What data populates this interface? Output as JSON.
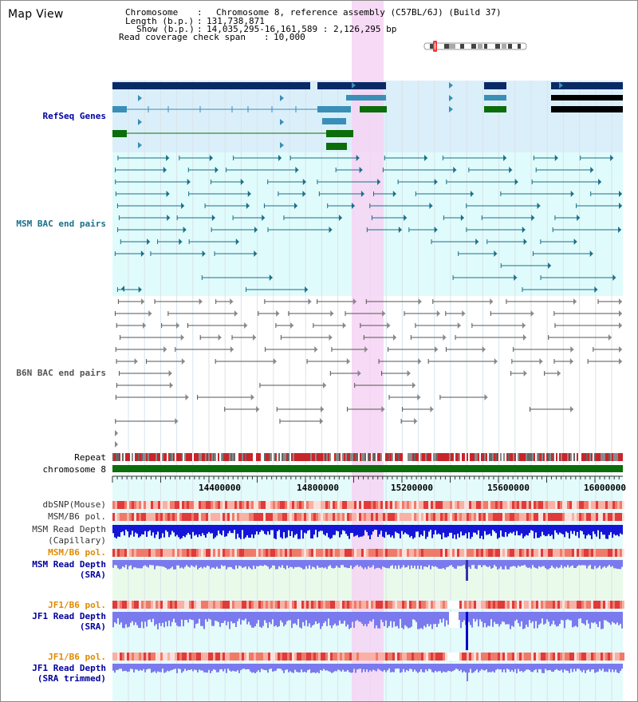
{
  "window": {
    "title": "Map View"
  },
  "info": {
    "chromosome_key": "Chromosome",
    "chromosome_val": "Chromosome 8, reference assembly (C57BL/6J) (Build 37)",
    "length_key": "Length (b.p.)",
    "length_val": "131,738,871",
    "show_key": "Show (b.p.)",
    "show_val": "14,035,295-16,161,589 : 2,126,295 bp",
    "coverage_key": "Read coverage check span",
    "coverage_val": "10,000"
  },
  "tracks": {
    "refseq": "RefSeq Genes",
    "msm_bac": "MSM BAC end pairs",
    "b6n_bac": "B6N BAC end pairs",
    "repeat": "Repeat",
    "chromosome": "chromosome 8",
    "dbsnp": "dbSNP(Mouse)",
    "msm_b6_pol_1": "MSM/B6 pol.",
    "msm_depth_cap_1": "MSM Read Depth",
    "msm_depth_cap_2": "(Capillary)",
    "msm_b6_pol_2": "MSM/B6 pol.",
    "msm_depth_sra_1": "MSM Read Depth",
    "msm_depth_sra_2": "(SRA)",
    "jf1_b6_pol_1": "JF1/B6 pol.",
    "jf1_depth_1": "JF1 Read Depth",
    "jf1_depth_2": "(SRA)",
    "jf1_b6_pol_2": "JF1/B6 pol.",
    "jf1_trim_1": "JF1 Read Depth",
    "jf1_trim_2": "(SRA trimmed)"
  },
  "ruler": {
    "ticks": [
      "14400000",
      "14800000",
      "15200000",
      "15600000",
      "16000000"
    ]
  },
  "colors": {
    "refseq_bg": "#dbeffa",
    "bac_bg": "#e0fbfb",
    "highlight": "#f6d4f3",
    "navy": "#0a2a66",
    "teal": "#3a8fb7",
    "green": "#0b6e0b",
    "msm_line": "#1a6f8a",
    "b6n_line": "#555555",
    "repeat_red": "#c8252a",
    "depth_blue": "#1515d8",
    "depth_light": "#7a7aee",
    "orange_label": "#e08a00",
    "blue_label": "#0000a0"
  }
}
